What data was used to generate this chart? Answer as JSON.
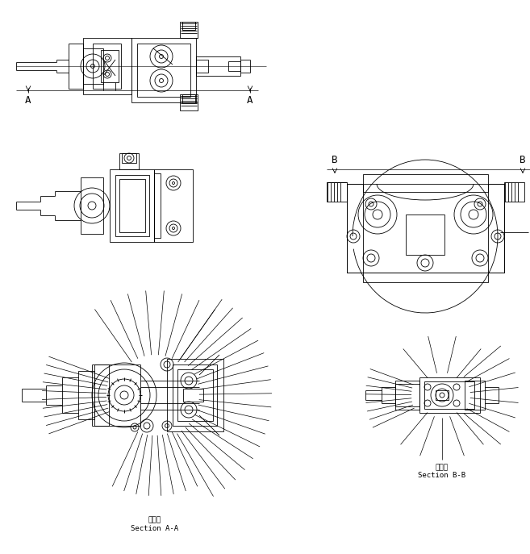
{
  "bg_color": "#ffffff",
  "line_color": "#000000",
  "fig_width": 6.57,
  "fig_height": 6.87,
  "dpi": 100,
  "label_A_left": "A",
  "label_A_right": "A",
  "label_B_left": "B",
  "label_B_right": "B",
  "section_aa_line1": "断　面",
  "section_aa_line2": "Section A-A",
  "section_bb_line1": "断　面",
  "section_bb_line2": "Section B-B",
  "font_size_label": 9,
  "font_size_section": 6.5
}
